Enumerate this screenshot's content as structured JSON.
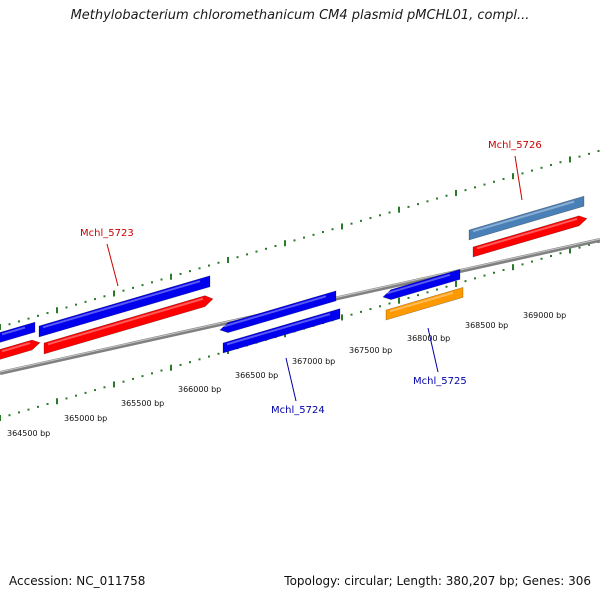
{
  "title": "Methylobacterium chloromethanicum CM4 plasmid pMCHL01, compl...",
  "footer": {
    "accession": "Accession: NC_011758",
    "summary": "Topology: circular; Length: 380,207 bp; Genes: 306"
  },
  "colors": {
    "forward_cds": "#ff0000",
    "reverse_cds": "#0000ee",
    "rna": "#4a80b8",
    "other_feature": "#ff9900",
    "backbone": "#808080",
    "ticks": "#2a7a2a",
    "label_forward": "#cc0000",
    "label_reverse": "#0000aa"
  },
  "scale_labels": [
    "364500 bp",
    "365000 bp",
    "365500 bp",
    "366000 bp",
    "366500 bp",
    "367000 bp",
    "367500 bp",
    "368000 bp",
    "368500 bp",
    "369000 bp"
  ],
  "genes": [
    {
      "name": "Mchl_5723",
      "label_color": "label_forward"
    },
    {
      "name": "Mchl_5724",
      "label_color": "label_reverse"
    },
    {
      "name": "Mchl_5725",
      "label_color": "label_reverse"
    },
    {
      "name": "Mchl_5726",
      "label_color": "label_forward"
    }
  ]
}
